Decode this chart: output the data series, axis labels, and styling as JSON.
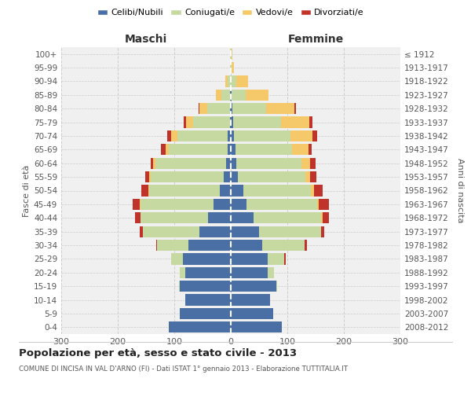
{
  "age_groups": [
    "0-4",
    "5-9",
    "10-14",
    "15-19",
    "20-24",
    "25-29",
    "30-34",
    "35-39",
    "40-44",
    "45-49",
    "50-54",
    "55-59",
    "60-64",
    "65-69",
    "70-74",
    "75-79",
    "80-84",
    "85-89",
    "90-94",
    "95-99",
    "100+"
  ],
  "birth_years": [
    "2008-2012",
    "2003-2007",
    "1998-2002",
    "1993-1997",
    "1988-1992",
    "1983-1987",
    "1978-1982",
    "1973-1977",
    "1968-1972",
    "1963-1967",
    "1958-1962",
    "1953-1957",
    "1948-1952",
    "1943-1947",
    "1938-1942",
    "1933-1937",
    "1928-1932",
    "1923-1927",
    "1918-1922",
    "1913-1917",
    "≤ 1912"
  ],
  "maschi": {
    "celibe": [
      110,
      90,
      80,
      90,
      80,
      85,
      75,
      55,
      40,
      30,
      20,
      12,
      8,
      5,
      5,
      2,
      1,
      1,
      0,
      0,
      0
    ],
    "coniugato": [
      0,
      0,
      0,
      2,
      10,
      20,
      55,
      100,
      120,
      130,
      125,
      130,
      125,
      105,
      90,
      65,
      40,
      15,
      5,
      2,
      1
    ],
    "vedovo": [
      0,
      0,
      0,
      0,
      0,
      0,
      0,
      0,
      0,
      1,
      1,
      2,
      4,
      5,
      10,
      12,
      15,
      10,
      5,
      0,
      0
    ],
    "divorziato": [
      0,
      0,
      0,
      0,
      0,
      0,
      2,
      6,
      10,
      12,
      12,
      8,
      5,
      8,
      8,
      5,
      1,
      0,
      0,
      0,
      0
    ]
  },
  "femmine": {
    "nubile": [
      90,
      75,
      70,
      80,
      65,
      65,
      55,
      50,
      40,
      28,
      22,
      12,
      10,
      8,
      5,
      4,
      3,
      2,
      0,
      0,
      0
    ],
    "coniugata": [
      0,
      0,
      0,
      2,
      12,
      30,
      75,
      110,
      120,
      125,
      120,
      120,
      115,
      100,
      100,
      85,
      60,
      25,
      10,
      2,
      1
    ],
    "vedova": [
      0,
      0,
      0,
      0,
      0,
      0,
      0,
      0,
      2,
      2,
      5,
      8,
      15,
      30,
      40,
      50,
      50,
      40,
      20,
      3,
      2
    ],
    "divorziata": [
      0,
      0,
      0,
      0,
      0,
      2,
      5,
      5,
      12,
      18,
      15,
      12,
      10,
      5,
      8,
      5,
      2,
      0,
      0,
      0,
      0
    ]
  },
  "colors": {
    "celibe": "#4a6fa5",
    "coniugato": "#c5d9a0",
    "vedovo": "#f5c96a",
    "divorziato": "#c0332a"
  },
  "title": "Popolazione per età, sesso e stato civile - 2013",
  "subtitle": "COMUNE DI INCISA IN VAL D'ARNO (FI) - Dati ISTAT 1° gennaio 2013 - Elaborazione TUTTITALIA.IT",
  "xlabel_left": "Maschi",
  "xlabel_right": "Femmine",
  "ylabel_left": "Fasce di età",
  "ylabel_right": "Anni di nascita",
  "xlim": 300,
  "legend_labels": [
    "Celibi/Nubili",
    "Coniugati/e",
    "Vedovi/e",
    "Divorziati/e"
  ],
  "bg_color": "#f0f0f0",
  "grid_color": "#cccccc"
}
